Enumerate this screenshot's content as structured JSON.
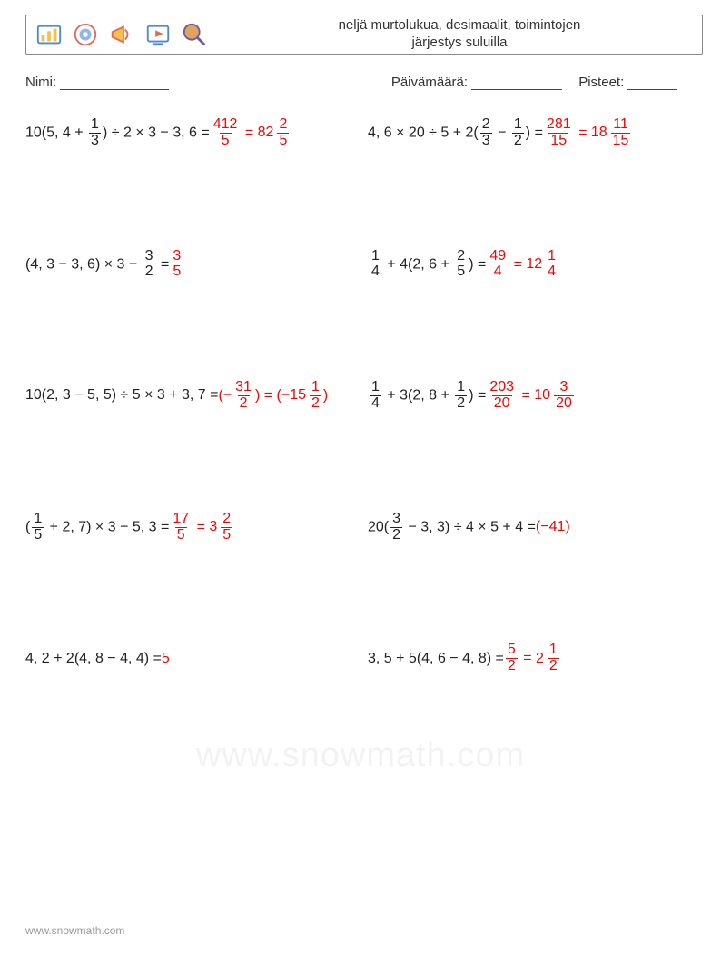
{
  "header": {
    "title_line1": "neljä murtolukua, desimaalit, toimintojen",
    "title_line2": "järjestys suluilla",
    "icons": [
      {
        "name": "chart-icon",
        "stroke": "#4a8bd6",
        "fill": "#f7c04a"
      },
      {
        "name": "target-icon",
        "stroke": "#e06b5a",
        "fill": "#8fb8e8"
      },
      {
        "name": "megaphone-icon",
        "stroke": "#e06b5a",
        "fill": "#f7c04a"
      },
      {
        "name": "play-icon",
        "stroke": "#4a8bd6",
        "fill": "#e06b5a"
      },
      {
        "name": "search-icon",
        "stroke": "#6b5aa8",
        "fill": "#e0a45a"
      }
    ]
  },
  "meta": {
    "name_label": "Nimi:",
    "date_label": "Päivämäärä:",
    "score_label": "Pisteet:"
  },
  "style": {
    "font_size_body": 16,
    "answer_color": "#ff0000",
    "text_color": "#222222",
    "border_color": "#888888",
    "background": "#ffffff",
    "row_gap": 110,
    "watermark_color": "rgba(0,0,0,0.05)"
  },
  "problems": [
    {
      "lhs": [
        {
          "t": "txt",
          "v": "10(5, 4 + "
        },
        {
          "t": "fr",
          "n": "1",
          "d": "3"
        },
        {
          "t": "txt",
          "v": ") ÷ 2 × 3 − 3, 6 = "
        }
      ],
      "ans": [
        {
          "t": "fr",
          "n": "412",
          "d": "5"
        },
        {
          "t": "txt",
          "v": " = "
        },
        {
          "t": "mix",
          "w": "82",
          "n": "2",
          "d": "5"
        }
      ]
    },
    {
      "lhs": [
        {
          "t": "txt",
          "v": "4, 6 × 20 ÷ 5 + 2("
        },
        {
          "t": "fr",
          "n": "2",
          "d": "3"
        },
        {
          "t": "txt",
          "v": " − "
        },
        {
          "t": "fr",
          "n": "1",
          "d": "2"
        },
        {
          "t": "txt",
          "v": ") = "
        }
      ],
      "ans": [
        {
          "t": "fr",
          "n": "281",
          "d": "15"
        },
        {
          "t": "txt",
          "v": " = "
        },
        {
          "t": "mix",
          "w": "18",
          "n": "11",
          "d": "15"
        }
      ]
    },
    {
      "lhs": [
        {
          "t": "txt",
          "v": "(4, 3 − 3, 6) × 3 − "
        },
        {
          "t": "fr",
          "n": "3",
          "d": "2"
        },
        {
          "t": "txt",
          "v": " = "
        }
      ],
      "ans": [
        {
          "t": "fr",
          "n": "3",
          "d": "5"
        }
      ]
    },
    {
      "lhs": [
        {
          "t": "fr",
          "n": "1",
          "d": "4"
        },
        {
          "t": "txt",
          "v": " + 4(2, 6 + "
        },
        {
          "t": "fr",
          "n": "2",
          "d": "5"
        },
        {
          "t": "txt",
          "v": ") = "
        }
      ],
      "ans": [
        {
          "t": "fr",
          "n": "49",
          "d": "4"
        },
        {
          "t": "txt",
          "v": " = "
        },
        {
          "t": "mix",
          "w": "12",
          "n": "1",
          "d": "4"
        }
      ]
    },
    {
      "lhs": [
        {
          "t": "txt",
          "v": "10(2, 3 − 5, 5) ÷ 5 × 3 + 3, 7 = "
        }
      ],
      "ans": [
        {
          "t": "txt",
          "v": "(−"
        },
        {
          "t": "fr",
          "n": "31",
          "d": "2"
        },
        {
          "t": "txt",
          "v": ") = (−"
        },
        {
          "t": "mix",
          "w": "15",
          "n": "1",
          "d": "2"
        },
        {
          "t": "txt",
          "v": ")"
        }
      ]
    },
    {
      "lhs": [
        {
          "t": "fr",
          "n": "1",
          "d": "4"
        },
        {
          "t": "txt",
          "v": " + 3(2, 8 + "
        },
        {
          "t": "fr",
          "n": "1",
          "d": "2"
        },
        {
          "t": "txt",
          "v": ") = "
        }
      ],
      "ans": [
        {
          "t": "fr",
          "n": "203",
          "d": "20"
        },
        {
          "t": "txt",
          "v": " = "
        },
        {
          "t": "mix",
          "w": "10",
          "n": "3",
          "d": "20"
        }
      ]
    },
    {
      "lhs": [
        {
          "t": "txt",
          "v": "("
        },
        {
          "t": "fr",
          "n": "1",
          "d": "5"
        },
        {
          "t": "txt",
          "v": " + 2, 7) × 3 − 5, 3 = "
        }
      ],
      "ans": [
        {
          "t": "fr",
          "n": "17",
          "d": "5"
        },
        {
          "t": "txt",
          "v": " = "
        },
        {
          "t": "mix",
          "w": "3",
          "n": "2",
          "d": "5"
        }
      ]
    },
    {
      "lhs": [
        {
          "t": "txt",
          "v": "20("
        },
        {
          "t": "fr",
          "n": "3",
          "d": "2"
        },
        {
          "t": "txt",
          "v": " − 3, 3) ÷ 4 × 5 + 4 = "
        }
      ],
      "ans": [
        {
          "t": "txt",
          "v": "(−41)"
        }
      ]
    },
    {
      "lhs": [
        {
          "t": "txt",
          "v": "4, 2 + 2(4, 8 − 4, 4) = "
        }
      ],
      "ans": [
        {
          "t": "txt",
          "v": "5"
        }
      ]
    },
    {
      "lhs": [
        {
          "t": "txt",
          "v": "3, 5 + 5(4, 6 − 4, 8) = "
        }
      ],
      "ans": [
        {
          "t": "fr",
          "n": "5",
          "d": "2"
        },
        {
          "t": "txt",
          "v": " = "
        },
        {
          "t": "mix",
          "w": "2",
          "n": "1",
          "d": "2"
        }
      ]
    }
  ],
  "watermark": "www.snowmath.com",
  "footer": "www.snowmath.com"
}
